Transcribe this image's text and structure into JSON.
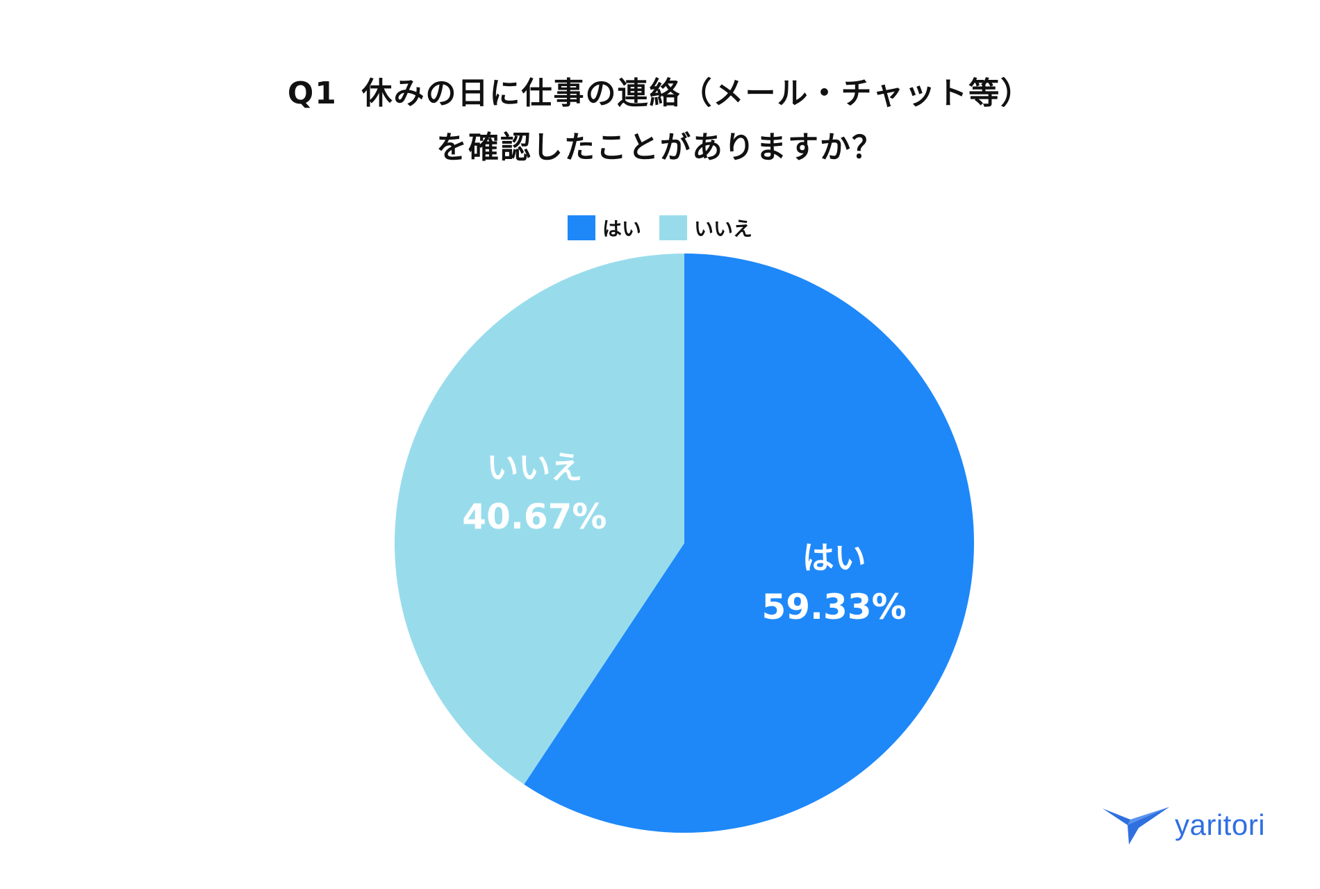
{
  "chart_data": {
    "type": "pie",
    "title_lines": [
      "Q1  休みの日に仕事の連絡（メール・チャット等）",
      "を確認したことがありますか？"
    ],
    "categories": [
      "はい",
      "いいえ"
    ],
    "values": [
      59.33,
      40.67
    ],
    "value_labels": [
      "59.33%",
      "40.67%"
    ],
    "colors": [
      "#1e88f9",
      "#98dcec"
    ],
    "legend": "top-center"
  },
  "brand": {
    "logo_text": "yaritori",
    "color": "#2f6fe0"
  }
}
